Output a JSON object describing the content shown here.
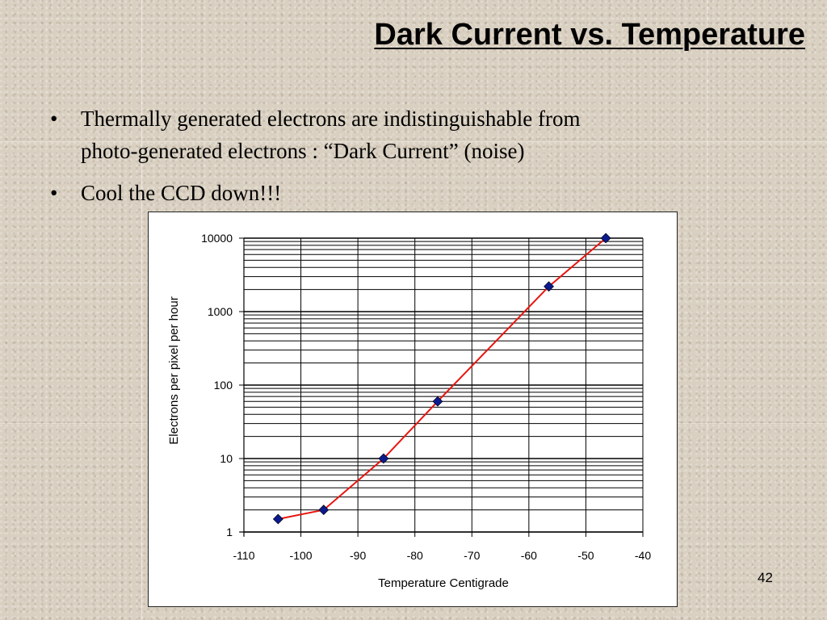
{
  "slide": {
    "title": "Dark Current vs. Temperature",
    "bullets": [
      {
        "symbol": "•",
        "lines": [
          "Thermally generated electrons are indistinguishable from",
          "photo-generated electrons : “Dark Current” (noise)"
        ]
      },
      {
        "symbol": "•",
        "lines": [
          "Cool the CCD down!!!"
        ]
      }
    ],
    "page_number": "42"
  },
  "chart_data": {
    "type": "line",
    "xlabel": "Temperature Centigrade",
    "ylabel": "Electrons per pixel per hour",
    "xlim": [
      -110,
      -40
    ],
    "ylim": [
      1,
      10000
    ],
    "y_scale": "log",
    "x_ticks": [
      "-110",
      "-100",
      "-90",
      "-80",
      "-70",
      "-60",
      "-50",
      "-40"
    ],
    "y_ticks": [
      "1",
      "10",
      "100",
      "1000",
      "10000"
    ],
    "grid": true,
    "series": [
      {
        "x": [
          -104,
          -96,
          -85.5,
          -76,
          -56.5,
          -46.5
        ],
        "y": [
          1.5,
          2,
          10,
          60,
          2200,
          10000
        ],
        "line_color": "#e8150f",
        "marker_color": "#0b1a8c",
        "marker": "diamond"
      }
    ]
  }
}
